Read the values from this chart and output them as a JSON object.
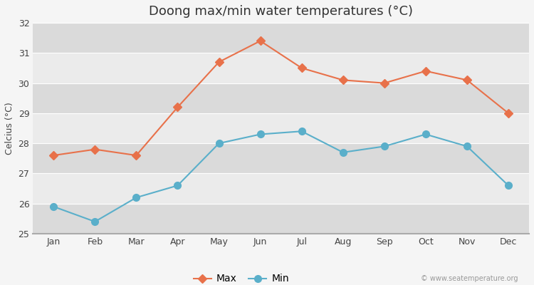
{
  "title": "Doong max/min water temperatures (°C)",
  "ylabel": "Celcius (°C)",
  "months": [
    "Jan",
    "Feb",
    "Mar",
    "Apr",
    "May",
    "Jun",
    "Jul",
    "Aug",
    "Sep",
    "Oct",
    "Nov",
    "Dec"
  ],
  "max_temps": [
    27.6,
    27.8,
    27.6,
    29.2,
    30.7,
    31.4,
    30.5,
    30.1,
    30.0,
    30.4,
    30.1,
    29.0
  ],
  "min_temps": [
    25.9,
    25.4,
    26.2,
    26.6,
    28.0,
    28.3,
    28.4,
    27.7,
    27.9,
    28.3,
    27.9,
    26.6
  ],
  "max_color": "#e8714a",
  "min_color": "#5aafca",
  "bg_color": "#f5f5f5",
  "band_light": "#ebebeb",
  "band_dark": "#dadada",
  "ylim": [
    25,
    32
  ],
  "yticks": [
    25,
    26,
    27,
    28,
    29,
    30,
    31,
    32
  ],
  "legend_labels": [
    "Max",
    "Min"
  ],
  "watermark": "© www.seatemperature.org",
  "grid_color": "#ffffff",
  "title_fontsize": 13,
  "label_fontsize": 9,
  "tick_fontsize": 9,
  "marker_size_max": 6,
  "marker_size_min": 7,
  "line_width": 1.5
}
